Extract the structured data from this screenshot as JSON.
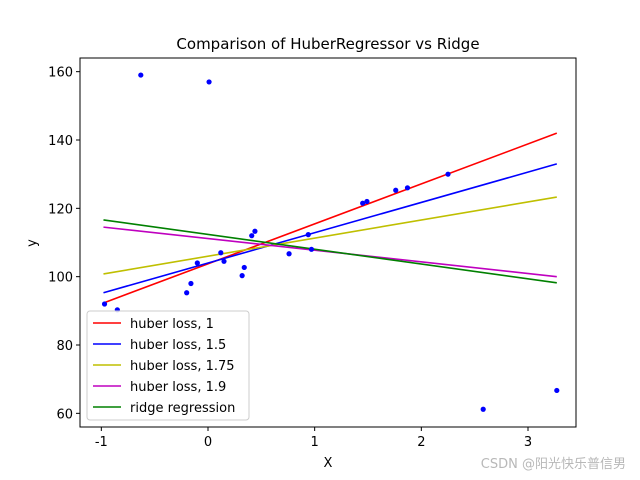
{
  "chart_data": {
    "type": "scatter",
    "title": "Comparison of HuberRegressor vs Ridge",
    "xlabel": "X",
    "ylabel": "y",
    "xlim": [
      -1.2,
      3.45
    ],
    "ylim": [
      56,
      164
    ],
    "xticks": [
      -1,
      0,
      1,
      2,
      3
    ],
    "yticks": [
      60,
      80,
      100,
      120,
      140,
      160
    ],
    "grid": false,
    "legend_position": "lower-left",
    "points": {
      "color": "#0000ff",
      "x": [
        -0.97,
        -0.85,
        -0.63,
        -0.2,
        -0.16,
        -0.1,
        0.01,
        0.12,
        0.15,
        0.32,
        0.34,
        0.41,
        0.44,
        0.76,
        0.94,
        0.97,
        1.45,
        1.49,
        1.76,
        1.87,
        2.25,
        2.58,
        3.27
      ],
      "y": [
        92,
        90.3,
        159,
        95.3,
        98,
        104,
        157,
        107,
        104.5,
        100.3,
        102.7,
        112,
        113.3,
        106.7,
        112.3,
        108,
        121.5,
        122,
        125.3,
        126,
        130,
        61.2,
        66.7
      ]
    },
    "series": [
      {
        "name": "huber loss, 1",
        "color": "#ff0000",
        "x": [
          -0.98,
          3.27
        ],
        "y": [
          92.3,
          142
        ]
      },
      {
        "name": "huber loss, 1.5",
        "color": "#0000ff",
        "x": [
          -0.98,
          3.27
        ],
        "y": [
          95.3,
          133
        ]
      },
      {
        "name": "huber loss, 1.75",
        "color": "#bfbf00",
        "x": [
          -0.98,
          3.27
        ],
        "y": [
          100.8,
          123.3
        ]
      },
      {
        "name": "huber loss, 1.9",
        "color": "#bf00bf",
        "x": [
          -0.98,
          3.27
        ],
        "y": [
          114.5,
          100
        ]
      },
      {
        "name": "ridge regression",
        "color": "#008000",
        "x": [
          -0.98,
          3.27
        ],
        "y": [
          116.6,
          98.2
        ]
      }
    ]
  },
  "watermark": "CSDN @阳光快乐普信男"
}
